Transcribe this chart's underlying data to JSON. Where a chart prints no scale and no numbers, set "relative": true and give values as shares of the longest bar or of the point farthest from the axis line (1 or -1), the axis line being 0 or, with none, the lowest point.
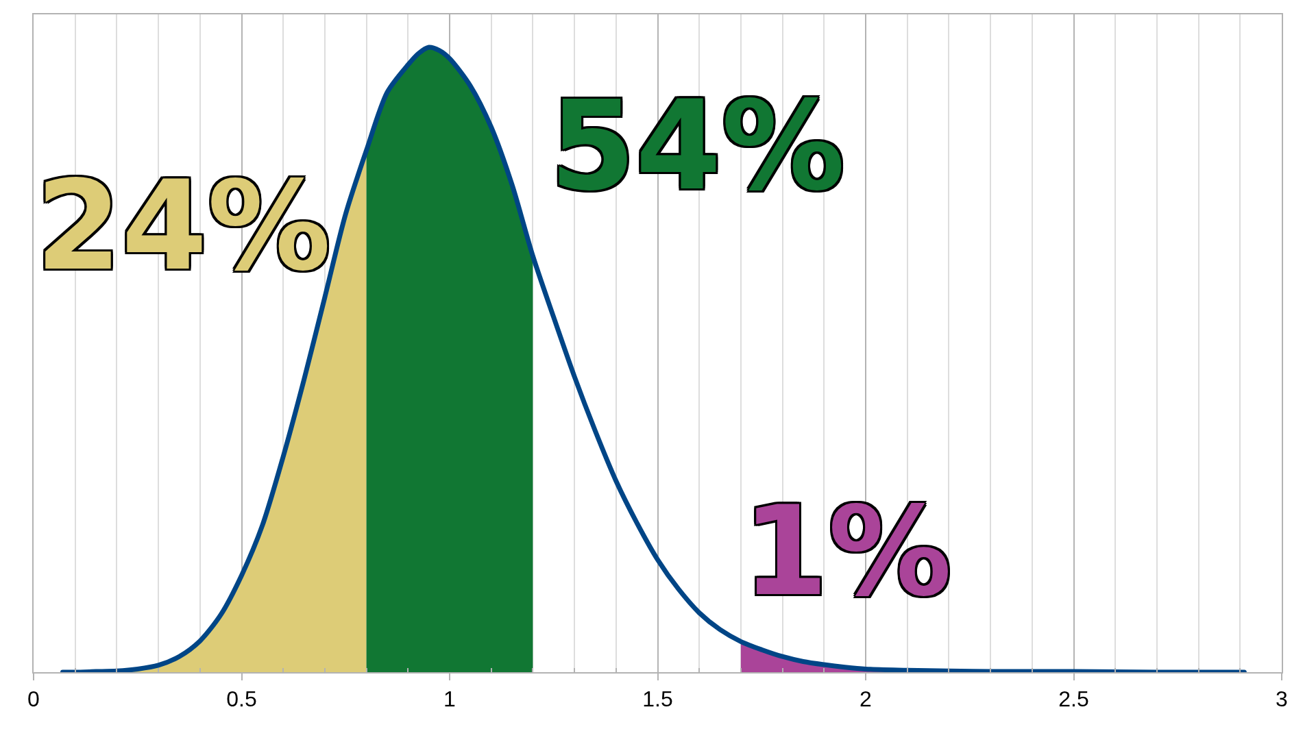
{
  "chart_data": {
    "type": "area",
    "relative": true,
    "grid": "x",
    "tick_labels": "x",
    "xlim": [
      0,
      3
    ],
    "xticks": [
      0,
      {
        "value": 0.1,
        "label": null
      },
      {
        "value": 0.2,
        "label": null
      },
      {
        "value": 0.3,
        "label": null
      },
      {
        "value": 0.4,
        "label": null
      },
      0.5,
      {
        "value": 0.6,
        "label": null
      },
      {
        "value": 0.7,
        "label": null
      },
      {
        "value": 0.8,
        "label": null
      },
      {
        "value": 0.9,
        "label": null
      },
      1,
      {
        "value": 1.1,
        "label": null
      },
      {
        "value": 1.2,
        "label": null
      },
      {
        "value": 1.3,
        "label": null
      },
      {
        "value": 1.4,
        "label": null
      },
      1.5,
      {
        "value": 1.6,
        "label": null
      },
      {
        "value": 1.7,
        "label": null
      },
      {
        "value": 1.8,
        "label": null
      },
      {
        "value": 1.9,
        "label": null
      },
      2,
      {
        "value": 2.1,
        "label": null
      },
      {
        "value": 2.2,
        "label": null
      },
      {
        "value": 2.3,
        "label": null
      },
      {
        "value": 2.4,
        "label": null
      },
      2.5,
      {
        "value": 2.6,
        "label": null
      },
      {
        "value": 2.7,
        "label": null
      },
      {
        "value": 2.8,
        "label": null
      },
      {
        "value": 2.9,
        "label": null
      },
      3
    ],
    "series": [
      {
        "color": "#ddcc77",
        "x": [
          0.07,
          0.1,
          0.15,
          0.2,
          0.25,
          0.3,
          0.35,
          0.4,
          0.45,
          0.5,
          0.55,
          0.6,
          0.65,
          0.7,
          0.75,
          0.8
        ],
        "values": [
          0.0,
          0.0,
          0.001,
          0.002,
          0.005,
          0.011,
          0.025,
          0.05,
          0.092,
          0.155,
          0.235,
          0.345,
          0.468,
          0.6,
          0.733,
          0.835
        ]
      },
      {
        "color": "#117733",
        "x": [
          0.8,
          0.85,
          0.9,
          0.925,
          0.95,
          0.975,
          1.0,
          1.05,
          1.1,
          1.15,
          1.2
        ],
        "values": [
          0.835,
          0.928,
          0.972,
          0.99,
          1.0,
          0.995,
          0.982,
          0.938,
          0.872,
          0.78,
          0.666
        ]
      },
      {
        "color": "#aa4499",
        "x": [
          1.7,
          1.75,
          1.8,
          1.85,
          1.9,
          1.95,
          2.0,
          2.1,
          2.2,
          2.3,
          2.5,
          2.7,
          2.91
        ],
        "values": [
          0.049,
          0.036,
          0.025,
          0.017,
          0.012,
          0.008,
          0.005,
          0.003,
          0.002,
          0.001,
          0.001,
          0.0,
          0.0
        ]
      },
      {
        "type": "line",
        "color": "#004586",
        "x": [
          0.07,
          0.1,
          0.15,
          0.2,
          0.25,
          0.3,
          0.35,
          0.4,
          0.45,
          0.5,
          0.55,
          0.6,
          0.65,
          0.7,
          0.75,
          0.8,
          0.85,
          0.9,
          0.925,
          0.95,
          0.975,
          1.0,
          1.05,
          1.1,
          1.15,
          1.2,
          1.25,
          1.3,
          1.35,
          1.4,
          1.45,
          1.5,
          1.55,
          1.6,
          1.65,
          1.7,
          1.75,
          1.8,
          1.85,
          1.9,
          1.95,
          2.0,
          2.1,
          2.2,
          2.3,
          2.5,
          2.7,
          2.91
        ],
        "values": [
          0.0,
          0.0,
          0.001,
          0.002,
          0.005,
          0.011,
          0.025,
          0.05,
          0.092,
          0.155,
          0.235,
          0.345,
          0.468,
          0.6,
          0.733,
          0.835,
          0.928,
          0.972,
          0.99,
          1.0,
          0.995,
          0.982,
          0.938,
          0.872,
          0.78,
          0.666,
          0.568,
          0.473,
          0.386,
          0.306,
          0.239,
          0.18,
          0.133,
          0.095,
          0.068,
          0.049,
          0.036,
          0.025,
          0.017,
          0.012,
          0.008,
          0.005,
          0.003,
          0.002,
          0.001,
          0.001,
          0.0,
          0.0
        ]
      }
    ],
    "annotations": [
      "24%",
      "54%",
      "1%"
    ]
  }
}
